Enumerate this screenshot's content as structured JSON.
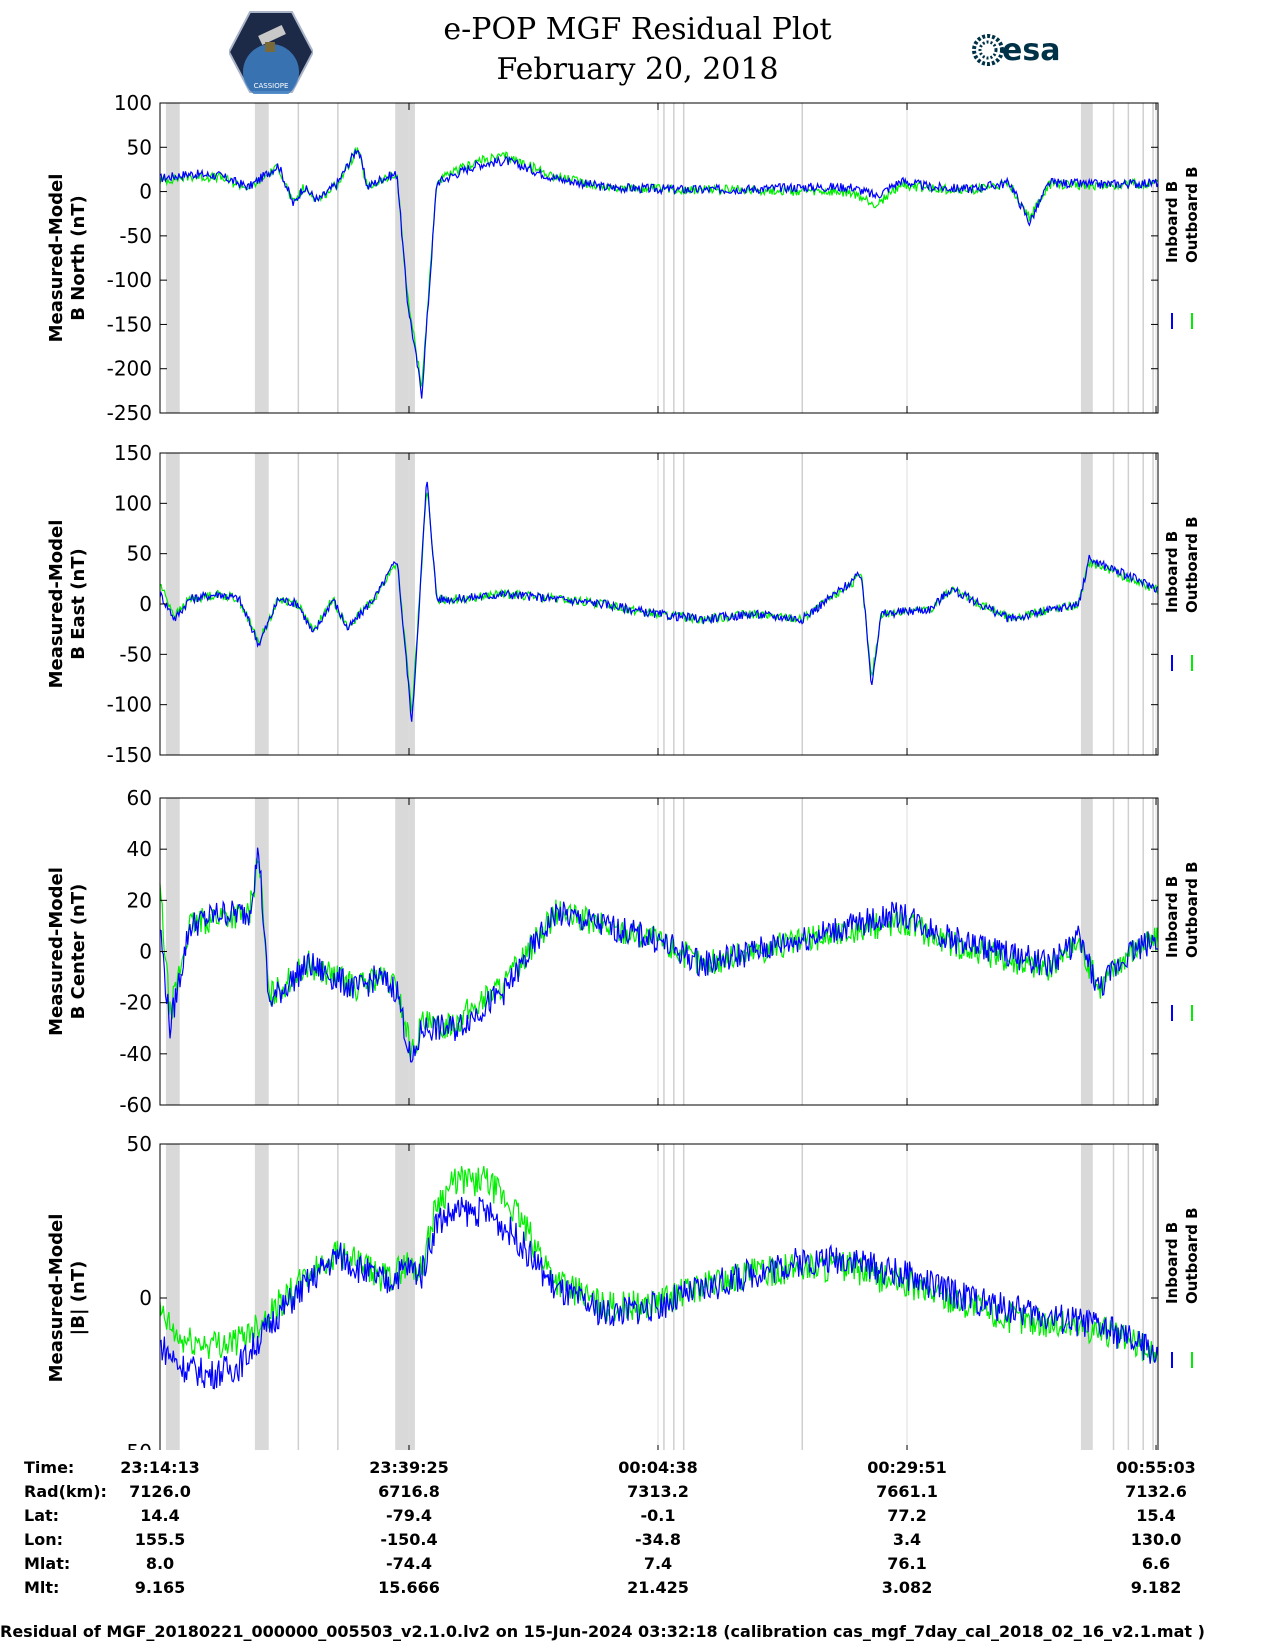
{
  "header": {
    "title_line1": "e-POP MGF Residual Plot",
    "title_line2": "February 20, 2018",
    "logo_left_text": "CASSIOPE",
    "logo_right_text": "esa"
  },
  "colors": {
    "inboard": "#0000ff",
    "outboard": "#00ee00",
    "gap_shade": "#d9d9d9",
    "event_line": "#cfcfcf"
  },
  "chart_data": [
    {
      "type": "line",
      "ylabel_line1": "Measured-Model",
      "ylabel_line2": "B North (nT)",
      "ylim": [
        -250,
        100
      ],
      "yticks": [
        100,
        50,
        0,
        -50,
        -100,
        -150,
        -200,
        -250
      ],
      "legend": [
        "Inboard B",
        "Outboard B"
      ],
      "x_minutes": [
        0,
        3,
        6,
        9,
        12,
        13.5,
        14.5,
        16,
        18,
        20,
        21,
        22.5,
        24,
        25,
        26.5,
        28,
        30,
        32,
        35,
        40,
        45,
        50,
        55,
        60,
        65,
        70,
        72.5,
        75,
        78,
        82,
        86,
        88,
        90,
        95,
        101
      ],
      "series": [
        {
          "name": "Inboard B",
          "values": [
            15,
            20,
            18,
            5,
            30,
            -15,
            5,
            -10,
            10,
            50,
            5,
            15,
            20,
            -120,
            -230,
            10,
            20,
            30,
            35,
            15,
            5,
            3,
            2,
            3,
            5,
            5,
            -5,
            12,
            5,
            3,
            10,
            -35,
            10,
            8,
            10
          ]
        },
        {
          "name": "Outboard B",
          "values": [
            12,
            17,
            16,
            4,
            28,
            -14,
            4,
            -9,
            9,
            48,
            4,
            13,
            18,
            -115,
            -220,
            11,
            23,
            34,
            40,
            17,
            5,
            3,
            2,
            2,
            0,
            -2,
            -15,
            8,
            3,
            2,
            8,
            -30,
            8,
            7,
            9
          ]
        }
      ]
    },
    {
      "type": "line",
      "ylabel_line1": "Measured-Model",
      "ylabel_line2": "B East (nT)",
      "ylim": [
        -150,
        150
      ],
      "yticks": [
        150,
        100,
        50,
        0,
        -50,
        -100,
        -150
      ],
      "legend": [
        "Inboard B",
        "Outboard B"
      ],
      "x_minutes": [
        0,
        1.5,
        3,
        6,
        8,
        10,
        12,
        14,
        15.5,
        17.5,
        19,
        22,
        24,
        25.5,
        27,
        28,
        30,
        35,
        40,
        45,
        50,
        55,
        60,
        65,
        71,
        72,
        73,
        78,
        80,
        86,
        93,
        94,
        101
      ],
      "series": [
        {
          "name": "Inboard B",
          "values": [
            10,
            -15,
            5,
            10,
            5,
            -40,
            5,
            0,
            -30,
            5,
            -25,
            10,
            45,
            -120,
            125,
            5,
            5,
            10,
            5,
            0,
            -10,
            -15,
            -10,
            -15,
            30,
            -80,
            -10,
            -5,
            15,
            -15,
            0,
            45,
            15
          ]
        },
        {
          "name": "Outboard B",
          "values": [
            20,
            -12,
            5,
            10,
            5,
            -38,
            5,
            0,
            -28,
            5,
            -24,
            10,
            42,
            -110,
            118,
            5,
            5,
            10,
            5,
            0,
            -10,
            -15,
            -10,
            -15,
            28,
            -75,
            -10,
            -5,
            14,
            -14,
            0,
            42,
            14
          ]
        }
      ]
    },
    {
      "type": "line",
      "ylabel_line1": "Measured-Model",
      "ylabel_line2": "B Center (nT)",
      "ylim": [
        -60,
        60
      ],
      "yticks": [
        60,
        40,
        20,
        0,
        -20,
        -40,
        -60
      ],
      "legend": [
        "Inboard B",
        "Outboard B"
      ],
      "x_minutes": [
        0,
        1,
        3,
        6,
        9,
        10,
        11,
        15,
        20,
        22,
        24,
        25.5,
        26.5,
        28,
        30,
        35,
        40,
        45,
        50,
        55,
        60,
        65,
        70,
        75,
        80,
        85,
        90,
        93,
        95,
        98,
        101
      ],
      "series": [
        {
          "name": "Inboard B",
          "values": [
            10,
            -30,
            10,
            15,
            15,
            40,
            -20,
            -5,
            -15,
            -10,
            -15,
            -45,
            -30,
            -30,
            -30,
            -15,
            15,
            10,
            5,
            -5,
            0,
            5,
            10,
            15,
            5,
            0,
            -5,
            5,
            -15,
            0,
            5
          ]
        },
        {
          "name": "Outboard B",
          "values": [
            25,
            -25,
            10,
            14,
            14,
            38,
            -18,
            -5,
            -14,
            -10,
            -14,
            -40,
            -28,
            -30,
            -27,
            -12,
            15,
            10,
            5,
            -5,
            0,
            4,
            8,
            12,
            3,
            -2,
            -7,
            4,
            -14,
            0,
            5
          ]
        }
      ]
    },
    {
      "type": "line",
      "ylabel_line1": "Measured-Model",
      "ylabel_line2": "|B| (nT)",
      "ylim": [
        -50,
        50
      ],
      "yticks": [
        50,
        0,
        -50
      ],
      "legend": [
        "Inboard B",
        "Outboard B"
      ],
      "x_minutes": [
        0,
        2,
        5,
        8,
        12,
        15,
        18,
        21,
        23,
        25,
        26.5,
        28,
        30,
        33,
        36,
        40,
        45,
        50,
        55,
        60,
        65,
        70,
        72,
        75,
        80,
        85,
        90,
        95,
        101
      ],
      "series": [
        {
          "name": "Inboard B",
          "values": [
            -15,
            -22,
            -25,
            -22,
            -5,
            5,
            14,
            8,
            5,
            10,
            8,
            25,
            28,
            28,
            20,
            3,
            -5,
            -3,
            3,
            8,
            12,
            13,
            10,
            8,
            2,
            -3,
            -6,
            -9,
            -18
          ]
        },
        {
          "name": "Outboard B",
          "values": [
            -5,
            -14,
            -15,
            -14,
            -2,
            7,
            15,
            9,
            6,
            11,
            9,
            31,
            38,
            38,
            28,
            6,
            -3,
            -2,
            4,
            8,
            10,
            10,
            7,
            5,
            0,
            -6,
            -8,
            -10,
            -18
          ]
        }
      ]
    }
  ],
  "gap_bands_minutes": [
    [
      0.6,
      2.0
    ],
    [
      9.6,
      11.0
    ],
    [
      23.8,
      25.8
    ],
    [
      93.2,
      94.4
    ]
  ],
  "event_lines_minutes": [
    14,
    18,
    51,
    52,
    53,
    65,
    96.5,
    98,
    99.5,
    100.5
  ],
  "ephemeris": {
    "row_labels": [
      "Time:",
      "Rad(km):",
      "Lat:",
      "Lon:",
      "Mlat:",
      "Mlt:"
    ],
    "columns": [
      [
        "23:14:13",
        "7126.0",
        "14.4",
        "155.5",
        "8.0",
        "9.165"
      ],
      [
        "23:39:25",
        "6716.8",
        "-79.4",
        "-150.4",
        "-74.4",
        "15.666"
      ],
      [
        "00:04:38",
        "7313.2",
        "-0.1",
        "-34.8",
        "7.4",
        "21.425"
      ],
      [
        "00:29:51",
        "7661.1",
        "77.2",
        "3.4",
        "76.1",
        "3.082"
      ],
      [
        "00:55:03",
        "7132.6",
        "15.4",
        "130.0",
        "6.6",
        "9.182"
      ]
    ],
    "tick_minutes": [
      0,
      25.2,
      50.4,
      75.6,
      100.8
    ]
  },
  "footer": "Residual of MGF_20180221_000000_005503_v2.1.0.lv2 on 15-Jun-2024 03:32:18 (calibration cas_mgf_7day_cal_2018_02_16_v2.1.mat )"
}
